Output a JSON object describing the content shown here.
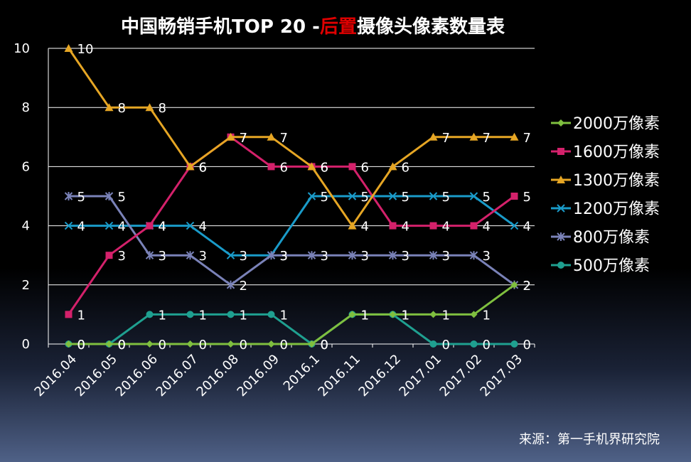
{
  "chart_data": {
    "type": "line",
    "title_parts": [
      {
        "text": "中国畅销手机TOP 20  -",
        "color": "#ffffff"
      },
      {
        "text": "后置",
        "color": "#e00000"
      },
      {
        "text": "摄像头像素数量表",
        "color": "#ffffff"
      }
    ],
    "categories": [
      "2016.04",
      "2016.05",
      "2016.06",
      "2016.07",
      "2016.08",
      "2016.09",
      "2016.1",
      "2016.11",
      "2016.12",
      "2017.01",
      "2017.02",
      "2017.03"
    ],
    "ylim": [
      0,
      10
    ],
    "yticks": [
      0,
      2,
      4,
      6,
      8,
      10
    ],
    "grid": true,
    "legend_position": "right",
    "series": [
      {
        "name": "2000万像素",
        "color": "#7fbf3f",
        "marker": "diamond",
        "values": [
          0,
          0,
          0,
          0,
          0,
          0,
          0,
          1,
          1,
          1,
          1,
          2
        ]
      },
      {
        "name": "1600万像素",
        "color": "#d4216b",
        "marker": "square",
        "values": [
          1,
          3,
          4,
          6,
          7,
          6,
          6,
          6,
          4,
          4,
          4,
          5
        ]
      },
      {
        "name": "1300万像素",
        "color": "#e6a624",
        "marker": "triangle",
        "values": [
          10,
          8,
          8,
          6,
          7,
          7,
          6,
          4,
          6,
          7,
          7,
          7
        ]
      },
      {
        "name": "1200万像素",
        "color": "#1a9bc9",
        "marker": "x",
        "values": [
          4,
          4,
          4,
          4,
          3,
          3,
          5,
          5,
          5,
          5,
          5,
          4
        ]
      },
      {
        "name": "800万像素",
        "color": "#7a82b8",
        "marker": "star",
        "values": [
          5,
          5,
          3,
          3,
          2,
          3,
          3,
          3,
          3,
          3,
          3,
          2
        ]
      },
      {
        "name": "500万像素",
        "color": "#1fa090",
        "marker": "circle",
        "values": [
          0,
          0,
          1,
          1,
          1,
          1,
          0,
          1,
          1,
          0,
          0,
          0
        ]
      }
    ]
  },
  "source_text": "来源：第一手机界研究院"
}
